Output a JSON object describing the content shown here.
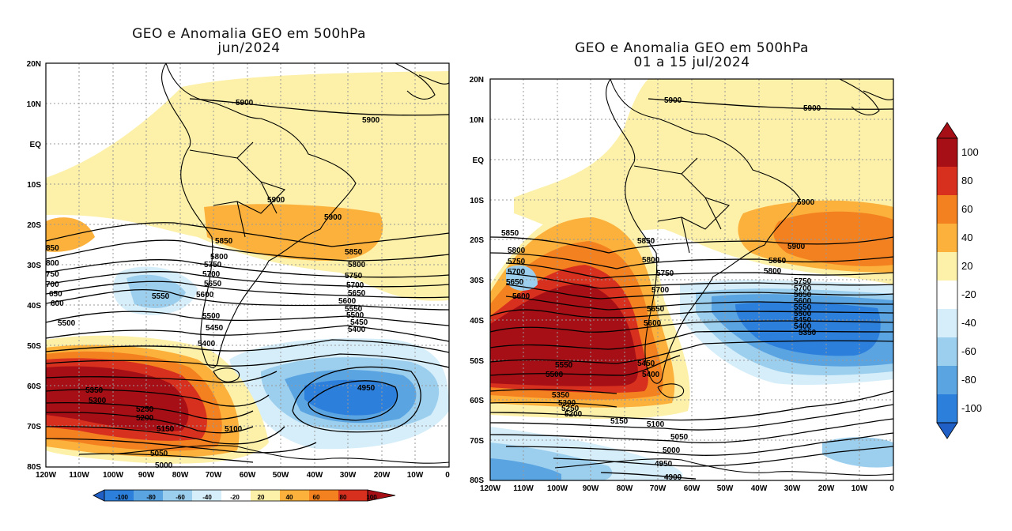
{
  "maps": [
    {
      "title_line1": "GEO e Anomalia GEO em 500hPa",
      "title_line2": "jun/2024",
      "lat_labels": [
        "20N",
        "10N",
        "EQ",
        "10S",
        "20S",
        "30S",
        "40S",
        "50S",
        "60S",
        "70S",
        "80S"
      ],
      "lon_labels": [
        "120W",
        "110W",
        "100W",
        "90W",
        "80W",
        "70W",
        "60W",
        "50W",
        "40W",
        "30W",
        "20W",
        "10W",
        "0"
      ],
      "contour_labels": [
        "5900",
        "5900",
        "5900",
        "5900",
        "5850",
        "5850",
        "5800",
        "5800",
        "5750",
        "5750",
        "5700",
        "5700",
        "5650",
        "5650",
        "5600",
        "5600",
        "5550",
        "5550",
        "5500",
        "5500",
        "5450",
        "5450",
        "5400",
        "5400",
        "5350",
        "5300",
        "5250",
        "5200",
        "5150",
        "5100",
        "5050",
        "5000",
        "4950",
        "850",
        "800",
        "750",
        "700",
        "650",
        "600"
      ]
    },
    {
      "title_line1": "GEO e Anomalia GEO em 500hPa",
      "title_line2": "01 a 15 jul/2024",
      "lat_labels": [
        "20N",
        "10N",
        "EQ",
        "10S",
        "20S",
        "30S",
        "40S",
        "50S",
        "60S",
        "70S",
        "80S"
      ],
      "lon_labels": [
        "120W",
        "110W",
        "100W",
        "90W",
        "80W",
        "70W",
        "60W",
        "50W",
        "40W",
        "30W",
        "20W",
        "10W",
        "0"
      ],
      "contour_labels": [
        "5900",
        "5900",
        "5900",
        "5900",
        "5850",
        "5850",
        "5800",
        "5800",
        "5750",
        "5750",
        "5700",
        "5700",
        "5650",
        "5650",
        "5600",
        "5600",
        "5550",
        "5550",
        "5500",
        "5500",
        "5450",
        "5450",
        "5400",
        "5400",
        "5350",
        "5350",
        "5300",
        "5250",
        "5200",
        "5150",
        "5100",
        "5050",
        "5000",
        "4950",
        "4900"
      ]
    }
  ],
  "colorbar_horizontal": {
    "labels": [
      "-100",
      "-80",
      "-60",
      "-40",
      "-20",
      "20",
      "40",
      "60",
      "80",
      "100"
    ]
  },
  "colorbar_vertical": {
    "labels": [
      "100",
      "80",
      "60",
      "40",
      "20",
      "-20",
      "-40",
      "-60",
      "-80",
      "-100"
    ]
  },
  "palette": {
    "p100": "#a50f15",
    "p80": "#d7301f",
    "p60": "#f4811f",
    "p40": "#fbb13b",
    "p20": "#fdf0a8",
    "zero": "#ffffff",
    "n20": "#d6eefa",
    "n40": "#9ccfee",
    "n60": "#5ba4e2",
    "n80": "#2d7fdc",
    "n100": "#1f5fc6"
  }
}
